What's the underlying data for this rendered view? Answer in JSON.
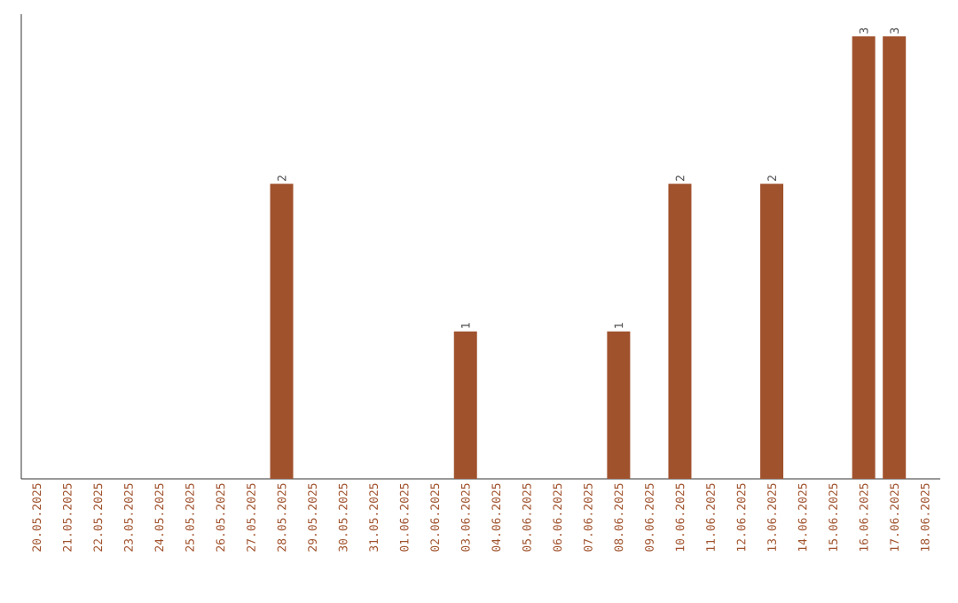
{
  "chart_data": {
    "type": "bar",
    "categories": [
      "20.05.2025",
      "21.05.2025",
      "22.05.2025",
      "23.05.2025",
      "24.05.2025",
      "25.05.2025",
      "26.05.2025",
      "27.05.2025",
      "28.05.2025",
      "29.05.2025",
      "30.05.2025",
      "31.05.2025",
      "01.06.2025",
      "02.06.2025",
      "03.06.2025",
      "04.06.2025",
      "05.06.2025",
      "06.06.2025",
      "07.06.2025",
      "08.06.2025",
      "09.06.2025",
      "10.06.2025",
      "11.06.2025",
      "12.06.2025",
      "13.06.2025",
      "14.06.2025",
      "15.06.2025",
      "16.06.2025",
      "17.06.2025",
      "18.06.2025"
    ],
    "values": [
      0,
      0,
      0,
      0,
      0,
      0,
      0,
      0,
      2,
      0,
      0,
      0,
      0,
      0,
      1,
      0,
      0,
      0,
      0,
      1,
      0,
      2,
      0,
      0,
      2,
      0,
      0,
      3,
      3,
      0
    ],
    "value_labels": [
      null,
      null,
      null,
      null,
      null,
      null,
      null,
      null,
      "2",
      null,
      null,
      null,
      null,
      null,
      "1",
      null,
      null,
      null,
      null,
      "1",
      null,
      "2",
      null,
      null,
      "2",
      null,
      null,
      "3",
      "3",
      null
    ],
    "color": "#a0522d",
    "ylim": [
      0,
      3.15
    ],
    "tick_labels": "x"
  }
}
